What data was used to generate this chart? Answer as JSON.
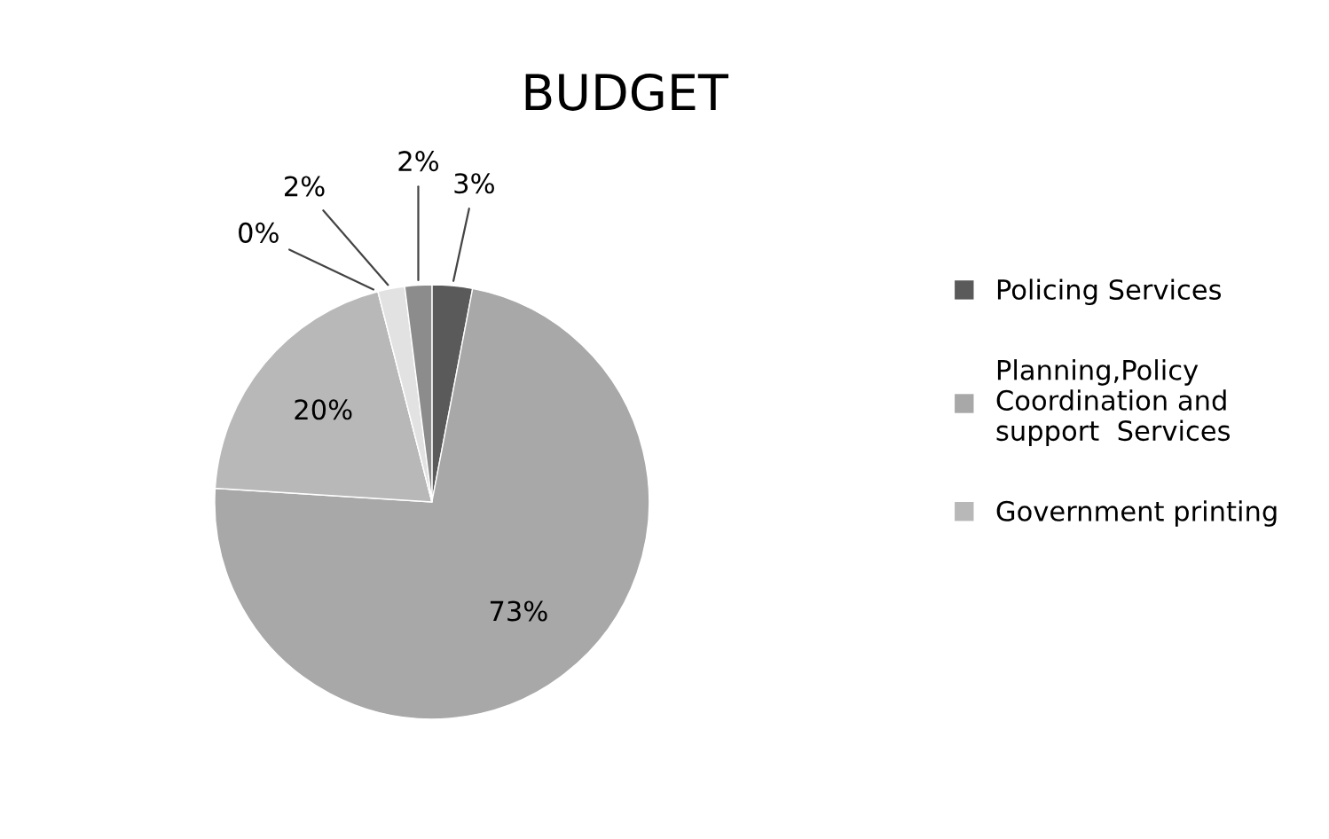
{
  "chart_data": {
    "type": "pie",
    "title": "BUDGET",
    "categories": [
      "Policing Services",
      "Planning,Policy\nCoordination and\nsupport  Services",
      "Government printing",
      null,
      null,
      null
    ],
    "values": [
      3,
      73,
      20,
      0,
      2,
      2
    ],
    "colors": [
      "#5a5a5a",
      "#a8a8a8",
      "#b8b8b8",
      "#d0d0d0",
      "#e2e2e2",
      "#8c8c8c"
    ],
    "value_labels": [
      "3%",
      "73%",
      "20%",
      "0%",
      "2%",
      "2%"
    ],
    "legend": "right"
  }
}
